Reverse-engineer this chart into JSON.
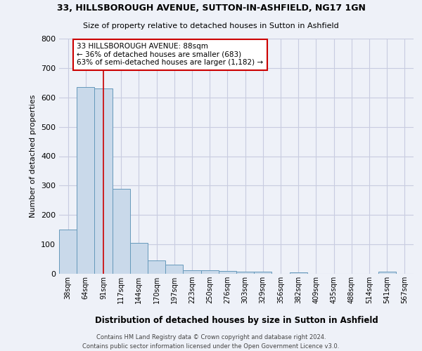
{
  "title1": "33, HILLSBOROUGH AVENUE, SUTTON-IN-ASHFIELD, NG17 1GN",
  "title2": "Size of property relative to detached houses in Sutton in Ashfield",
  "xlabel": "Distribution of detached houses by size in Sutton in Ashfield",
  "ylabel": "Number of detached properties",
  "footer": "Contains HM Land Registry data © Crown copyright and database right 2024.\nContains public sector information licensed under the Open Government Licence v3.0.",
  "bin_labels": [
    "38sqm",
    "64sqm",
    "91sqm",
    "117sqm",
    "144sqm",
    "170sqm",
    "197sqm",
    "223sqm",
    "250sqm",
    "276sqm",
    "303sqm",
    "329sqm",
    "356sqm",
    "382sqm",
    "409sqm",
    "435sqm",
    "488sqm",
    "514sqm",
    "541sqm",
    "567sqm"
  ],
  "bar_heights": [
    150,
    635,
    630,
    290,
    105,
    46,
    30,
    12,
    12,
    10,
    8,
    8,
    0,
    5,
    0,
    0,
    0,
    0,
    8,
    0
  ],
  "bar_color": "#c9d9ea",
  "bar_edge_color": "#6699bb",
  "grid_color": "#c8cce0",
  "background_color": "#eef1f8",
  "vline_x_index": 2,
  "vline_color": "#cc0000",
  "annotation_line1": "33 HILLSBOROUGH AVENUE: 88sqm",
  "annotation_line2": "← 36% of detached houses are smaller (683)",
  "annotation_line3": "63% of semi-detached houses are larger (1,182) →",
  "annotation_box_facecolor": "#ffffff",
  "annotation_border_color": "#cc0000",
  "ylim": [
    0,
    800
  ],
  "yticks": [
    0,
    100,
    200,
    300,
    400,
    500,
    600,
    700,
    800
  ]
}
